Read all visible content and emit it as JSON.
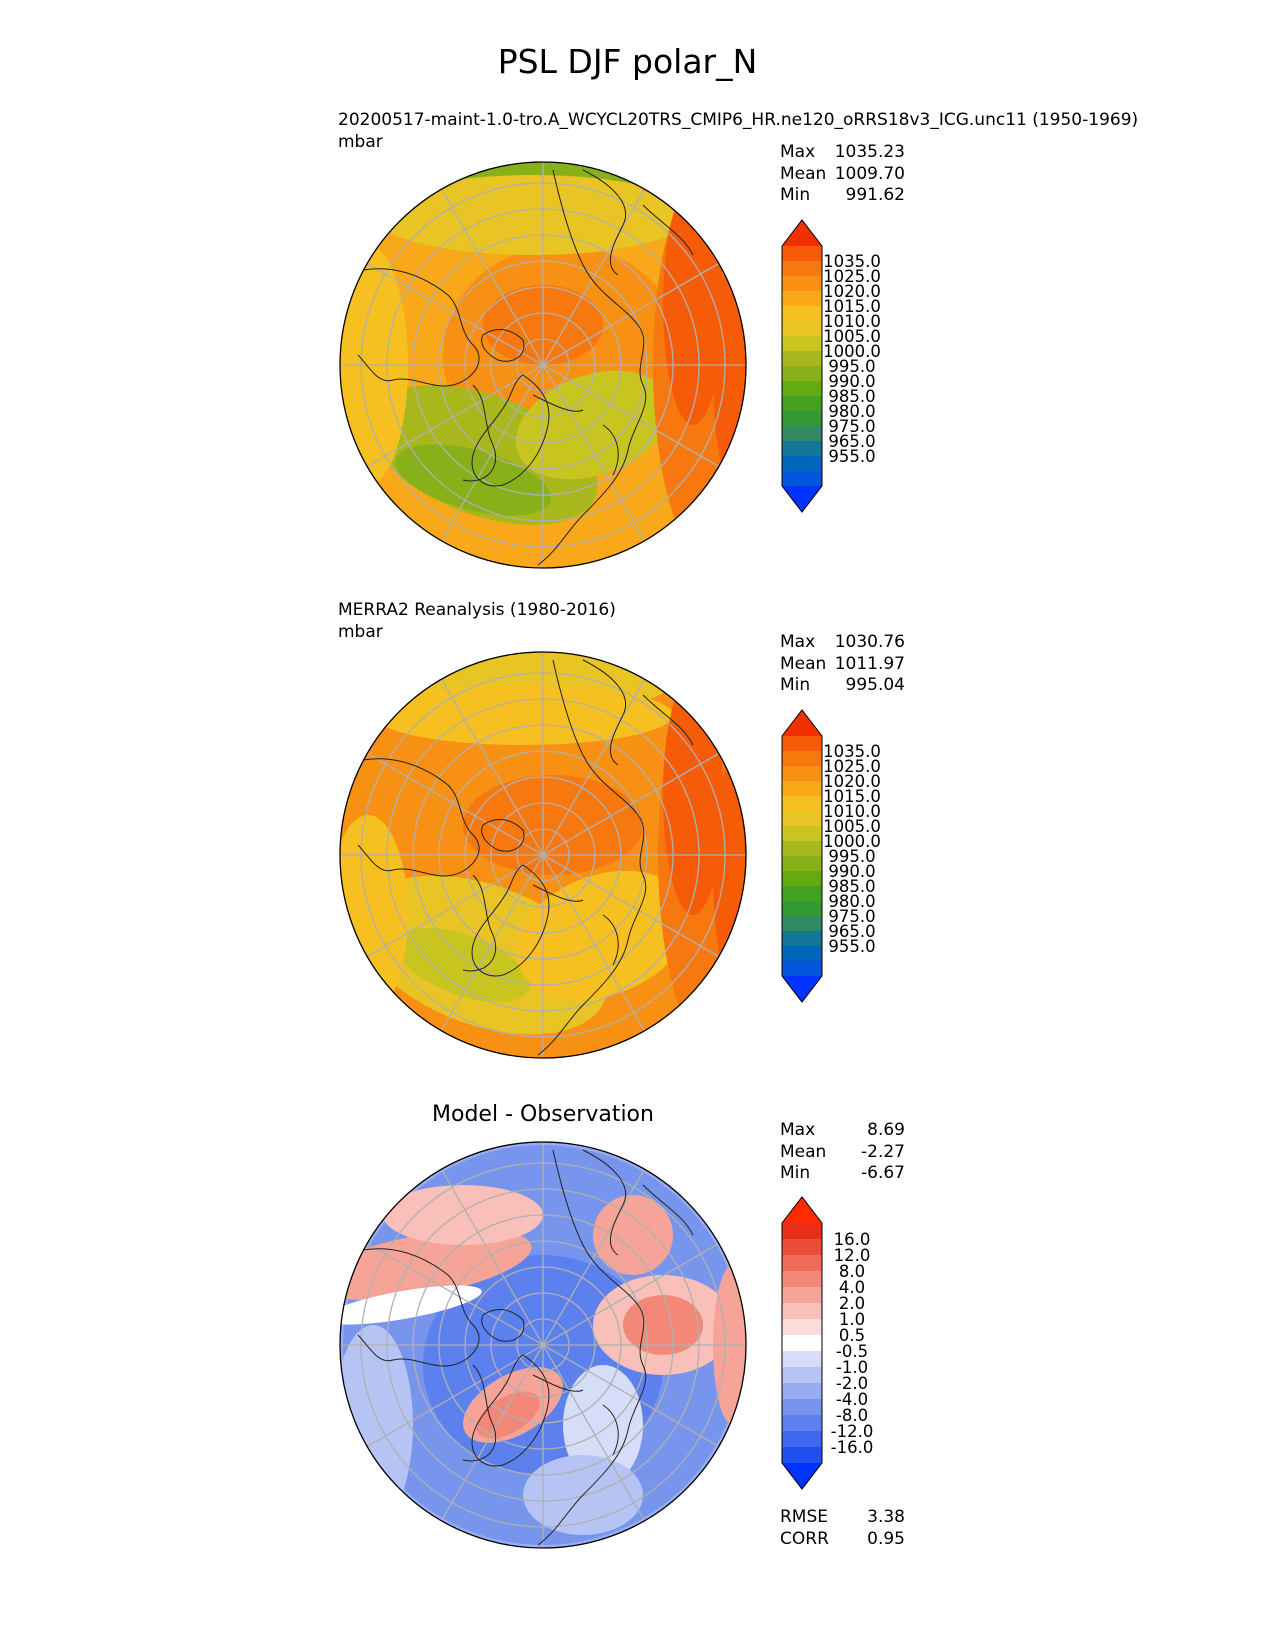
{
  "title": "PSL DJF polar_N",
  "colors": {
    "grid": "#b0b0b0",
    "coast": "#222222",
    "map_colors": [
      "#0033ff",
      "#0055dd",
      "#0066bb",
      "#117799",
      "#338866",
      "#339933",
      "#44a022",
      "#66aa11",
      "#88b019",
      "#a8b81c",
      "#c8c420",
      "#e8c424",
      "#f6c020",
      "#f8a818",
      "#f89014",
      "#f87810",
      "#f65c08",
      "#f03000"
    ],
    "diff_colors": [
      "#0033ff",
      "#2050f0",
      "#3f68ee",
      "#5c80ee",
      "#7895ee",
      "#98acf2",
      "#b5c4f4",
      "#d5ddf8",
      "#ffffff",
      "#fbdcd8",
      "#f8c0b8",
      "#f6a498",
      "#f48878",
      "#f06a58",
      "#ec4c38",
      "#e82e18",
      "#ff2a00"
    ]
  },
  "panels": [
    {
      "caption_line1": "20200517-maint-1.0-tro.A_WCYCL20TRS_CMIP6_HR.ne120_oRRS18v3_ICG.unc11 (1950-1969)",
      "caption_line2": "mbar",
      "stats": [
        {
          "label": "Max",
          "value": "1035.23"
        },
        {
          "label": "Mean",
          "value": "1009.70"
        },
        {
          "label": "Min",
          "value": "991.62"
        }
      ]
    },
    {
      "caption_line1": "MERRA2 Reanalysis (1980-2016)",
      "caption_line2": "mbar",
      "stats": [
        {
          "label": "Max",
          "value": "1030.76"
        },
        {
          "label": "Mean",
          "value": "1011.97"
        },
        {
          "label": "Min",
          "value": "995.04"
        }
      ]
    },
    {
      "panel_title": "Model - Observation",
      "stats": [
        {
          "label": "Max",
          "value": "8.69"
        },
        {
          "label": "Mean",
          "value": "-2.27"
        },
        {
          "label": "Min",
          "value": "-6.67"
        }
      ],
      "metrics": [
        {
          "label": "RMSE",
          "value": "3.38"
        },
        {
          "label": "CORR",
          "value": "0.95"
        }
      ]
    }
  ],
  "chart_data": [
    {
      "type": "heatmap",
      "projection": "north polar stereographic",
      "variable": "PSL",
      "season": "DJF",
      "units": "mbar",
      "colorbar_levels": [
        "1035.0",
        "1025.0",
        "1020.0",
        "1015.0",
        "1010.0",
        "1005.0",
        "1000.0",
        "995.0",
        "990.0",
        "985.0",
        "980.0",
        "975.0",
        "965.0",
        "955.0"
      ],
      "extend": "both"
    },
    {
      "type": "heatmap",
      "projection": "north polar stereographic",
      "units": "mbar",
      "colorbar_levels": [
        "1035.0",
        "1025.0",
        "1020.0",
        "1015.0",
        "1010.0",
        "1005.0",
        "1000.0",
        "995.0",
        "990.0",
        "985.0",
        "980.0",
        "975.0",
        "965.0",
        "955.0"
      ],
      "extend": "both"
    },
    {
      "type": "heatmap",
      "projection": "north polar stereographic",
      "colorbar_levels": [
        "16.0",
        "12.0",
        "8.0",
        "4.0",
        "2.0",
        "1.0",
        "0.5",
        "-0.5",
        "-1.0",
        "-2.0",
        "-4.0",
        "-8.0",
        "-12.0",
        "-16.0"
      ],
      "extend": "both"
    }
  ]
}
